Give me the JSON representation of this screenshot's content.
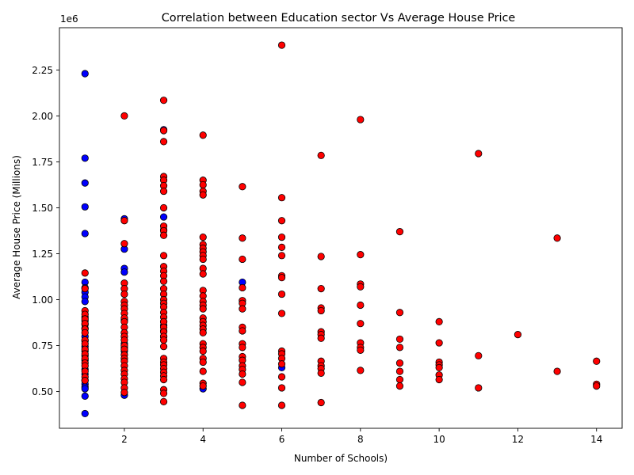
{
  "chart_data": {
    "type": "scatter",
    "title": "Correlation between Education sector Vs Average House Price",
    "xlabel": "Number of Schools)",
    "ylabel": "Average House Price (Millions)",
    "y_offset_label": "1e6",
    "xlim": [
      0.35,
      14.65
    ],
    "ylim": [
      300000,
      2480000
    ],
    "xticks": [
      2,
      4,
      6,
      8,
      10,
      12,
      14
    ],
    "xtick_labels": [
      "2",
      "4",
      "6",
      "8",
      "10",
      "12",
      "14"
    ],
    "yticks": [
      500000,
      750000,
      1000000,
      1250000,
      1500000,
      1750000,
      2000000,
      2250000
    ],
    "ytick_labels": [
      "0.50",
      "0.75",
      "1.00",
      "1.25",
      "1.50",
      "1.75",
      "2.00",
      "2.25"
    ],
    "grid": false,
    "legend": "none",
    "series": [
      {
        "color": "#0000ff",
        "points": [
          [
            1,
            2230000
          ],
          [
            1,
            1770000
          ],
          [
            1,
            1635000
          ],
          [
            1,
            1505000
          ],
          [
            1,
            1360000
          ],
          [
            1,
            1095000
          ],
          [
            1,
            1065000
          ],
          [
            1,
            1040000
          ],
          [
            1,
            1015000
          ],
          [
            1,
            990000
          ],
          [
            1,
            905000
          ],
          [
            1,
            885000
          ],
          [
            1,
            865000
          ],
          [
            1,
            845000
          ],
          [
            1,
            800000
          ],
          [
            1,
            775000
          ],
          [
            1,
            745000
          ],
          [
            1,
            720000
          ],
          [
            1,
            695000
          ],
          [
            1,
            670000
          ],
          [
            1,
            620000
          ],
          [
            1,
            595000
          ],
          [
            1,
            560000
          ],
          [
            1,
            540000
          ],
          [
            1,
            525000
          ],
          [
            1,
            515000
          ],
          [
            1,
            475000
          ],
          [
            1,
            380000
          ],
          [
            2,
            1440000
          ],
          [
            2,
            1275000
          ],
          [
            2,
            1170000
          ],
          [
            2,
            1150000
          ],
          [
            2,
            890000
          ],
          [
            2,
            760000
          ],
          [
            2,
            740000
          ],
          [
            2,
            720000
          ],
          [
            2,
            480000
          ],
          [
            3,
            1925000
          ],
          [
            3,
            1450000
          ],
          [
            3,
            1380000
          ],
          [
            3,
            880000
          ],
          [
            3,
            860000
          ],
          [
            3,
            830000
          ],
          [
            3,
            800000
          ],
          [
            4,
            515000
          ],
          [
            5,
            1095000
          ],
          [
            6,
            630000
          ]
        ]
      },
      {
        "color": "#ff0000",
        "points": [
          [
            1,
            1145000
          ],
          [
            1,
            1060000
          ],
          [
            1,
            940000
          ],
          [
            1,
            920000
          ],
          [
            1,
            895000
          ],
          [
            1,
            870000
          ],
          [
            1,
            840000
          ],
          [
            1,
            820000
          ],
          [
            1,
            780000
          ],
          [
            1,
            760000
          ],
          [
            1,
            730000
          ],
          [
            1,
            705000
          ],
          [
            1,
            680000
          ],
          [
            1,
            655000
          ],
          [
            1,
            640000
          ],
          [
            1,
            610000
          ],
          [
            1,
            580000
          ],
          [
            1,
            560000
          ],
          [
            2,
            2000000
          ],
          [
            2,
            1430000
          ],
          [
            2,
            1305000
          ],
          [
            2,
            1090000
          ],
          [
            2,
            1060000
          ],
          [
            2,
            1030000
          ],
          [
            2,
            990000
          ],
          [
            2,
            970000
          ],
          [
            2,
            950000
          ],
          [
            2,
            925000
          ],
          [
            2,
            900000
          ],
          [
            2,
            880000
          ],
          [
            2,
            850000
          ],
          [
            2,
            820000
          ],
          [
            2,
            800000
          ],
          [
            2,
            780000
          ],
          [
            2,
            750000
          ],
          [
            2,
            730000
          ],
          [
            2,
            700000
          ],
          [
            2,
            680000
          ],
          [
            2,
            665000
          ],
          [
            2,
            640000
          ],
          [
            2,
            615000
          ],
          [
            2,
            595000
          ],
          [
            2,
            570000
          ],
          [
            2,
            550000
          ],
          [
            2,
            520000
          ],
          [
            2,
            495000
          ],
          [
            3,
            2085000
          ],
          [
            3,
            1920000
          ],
          [
            3,
            1860000
          ],
          [
            3,
            1670000
          ],
          [
            3,
            1650000
          ],
          [
            3,
            1620000
          ],
          [
            3,
            1590000
          ],
          [
            3,
            1500000
          ],
          [
            3,
            1400000
          ],
          [
            3,
            1375000
          ],
          [
            3,
            1350000
          ],
          [
            3,
            1240000
          ],
          [
            3,
            1180000
          ],
          [
            3,
            1155000
          ],
          [
            3,
            1130000
          ],
          [
            3,
            1100000
          ],
          [
            3,
            1060000
          ],
          [
            3,
            1030000
          ],
          [
            3,
            1000000
          ],
          [
            3,
            980000
          ],
          [
            3,
            960000
          ],
          [
            3,
            930000
          ],
          [
            3,
            905000
          ],
          [
            3,
            880000
          ],
          [
            3,
            850000
          ],
          [
            3,
            825000
          ],
          [
            3,
            800000
          ],
          [
            3,
            780000
          ],
          [
            3,
            745000
          ],
          [
            3,
            680000
          ],
          [
            3,
            660000
          ],
          [
            3,
            645000
          ],
          [
            3,
            625000
          ],
          [
            3,
            605000
          ],
          [
            3,
            585000
          ],
          [
            3,
            565000
          ],
          [
            3,
            510000
          ],
          [
            3,
            490000
          ],
          [
            3,
            445000
          ],
          [
            4,
            1895000
          ],
          [
            4,
            1650000
          ],
          [
            4,
            1625000
          ],
          [
            4,
            1590000
          ],
          [
            4,
            1570000
          ],
          [
            4,
            1340000
          ],
          [
            4,
            1300000
          ],
          [
            4,
            1280000
          ],
          [
            4,
            1260000
          ],
          [
            4,
            1240000
          ],
          [
            4,
            1220000
          ],
          [
            4,
            1170000
          ],
          [
            4,
            1140000
          ],
          [
            4,
            1050000
          ],
          [
            4,
            1020000
          ],
          [
            4,
            990000
          ],
          [
            4,
            970000
          ],
          [
            4,
            950000
          ],
          [
            4,
            900000
          ],
          [
            4,
            880000
          ],
          [
            4,
            860000
          ],
          [
            4,
            840000
          ],
          [
            4,
            820000
          ],
          [
            4,
            760000
          ],
          [
            4,
            740000
          ],
          [
            4,
            720000
          ],
          [
            4,
            680000
          ],
          [
            4,
            660000
          ],
          [
            4,
            610000
          ],
          [
            4,
            545000
          ],
          [
            4,
            530000
          ],
          [
            5,
            1615000
          ],
          [
            5,
            1335000
          ],
          [
            5,
            1220000
          ],
          [
            5,
            1065000
          ],
          [
            5,
            995000
          ],
          [
            5,
            980000
          ],
          [
            5,
            950000
          ],
          [
            5,
            850000
          ],
          [
            5,
            830000
          ],
          [
            5,
            760000
          ],
          [
            5,
            740000
          ],
          [
            5,
            690000
          ],
          [
            5,
            670000
          ],
          [
            5,
            640000
          ],
          [
            5,
            620000
          ],
          [
            5,
            595000
          ],
          [
            5,
            550000
          ],
          [
            5,
            425000
          ],
          [
            6,
            2385000
          ],
          [
            6,
            1555000
          ],
          [
            6,
            1430000
          ],
          [
            6,
            1340000
          ],
          [
            6,
            1285000
          ],
          [
            6,
            1240000
          ],
          [
            6,
            1130000
          ],
          [
            6,
            1120000
          ],
          [
            6,
            1030000
          ],
          [
            6,
            925000
          ],
          [
            6,
            720000
          ],
          [
            6,
            705000
          ],
          [
            6,
            680000
          ],
          [
            6,
            650000
          ],
          [
            6,
            580000
          ],
          [
            6,
            520000
          ],
          [
            6,
            425000
          ],
          [
            7,
            1785000
          ],
          [
            7,
            1235000
          ],
          [
            7,
            1060000
          ],
          [
            7,
            955000
          ],
          [
            7,
            940000
          ],
          [
            7,
            825000
          ],
          [
            7,
            810000
          ],
          [
            7,
            790000
          ],
          [
            7,
            665000
          ],
          [
            7,
            640000
          ],
          [
            7,
            625000
          ],
          [
            7,
            600000
          ],
          [
            7,
            440000
          ],
          [
            8,
            1980000
          ],
          [
            8,
            1245000
          ],
          [
            8,
            1085000
          ],
          [
            8,
            1070000
          ],
          [
            8,
            970000
          ],
          [
            8,
            870000
          ],
          [
            8,
            765000
          ],
          [
            8,
            740000
          ],
          [
            8,
            725000
          ],
          [
            8,
            615000
          ],
          [
            9,
            1370000
          ],
          [
            9,
            930000
          ],
          [
            9,
            785000
          ],
          [
            9,
            740000
          ],
          [
            9,
            655000
          ],
          [
            9,
            610000
          ],
          [
            9,
            565000
          ],
          [
            9,
            530000
          ],
          [
            10,
            880000
          ],
          [
            10,
            765000
          ],
          [
            10,
            660000
          ],
          [
            10,
            645000
          ],
          [
            10,
            630000
          ],
          [
            10,
            590000
          ],
          [
            10,
            565000
          ],
          [
            11,
            1795000
          ],
          [
            11,
            695000
          ],
          [
            11,
            520000
          ],
          [
            12,
            810000
          ],
          [
            13,
            1335000
          ],
          [
            13,
            610000
          ],
          [
            14,
            665000
          ],
          [
            14,
            540000
          ],
          [
            14,
            530000
          ]
        ]
      }
    ]
  }
}
